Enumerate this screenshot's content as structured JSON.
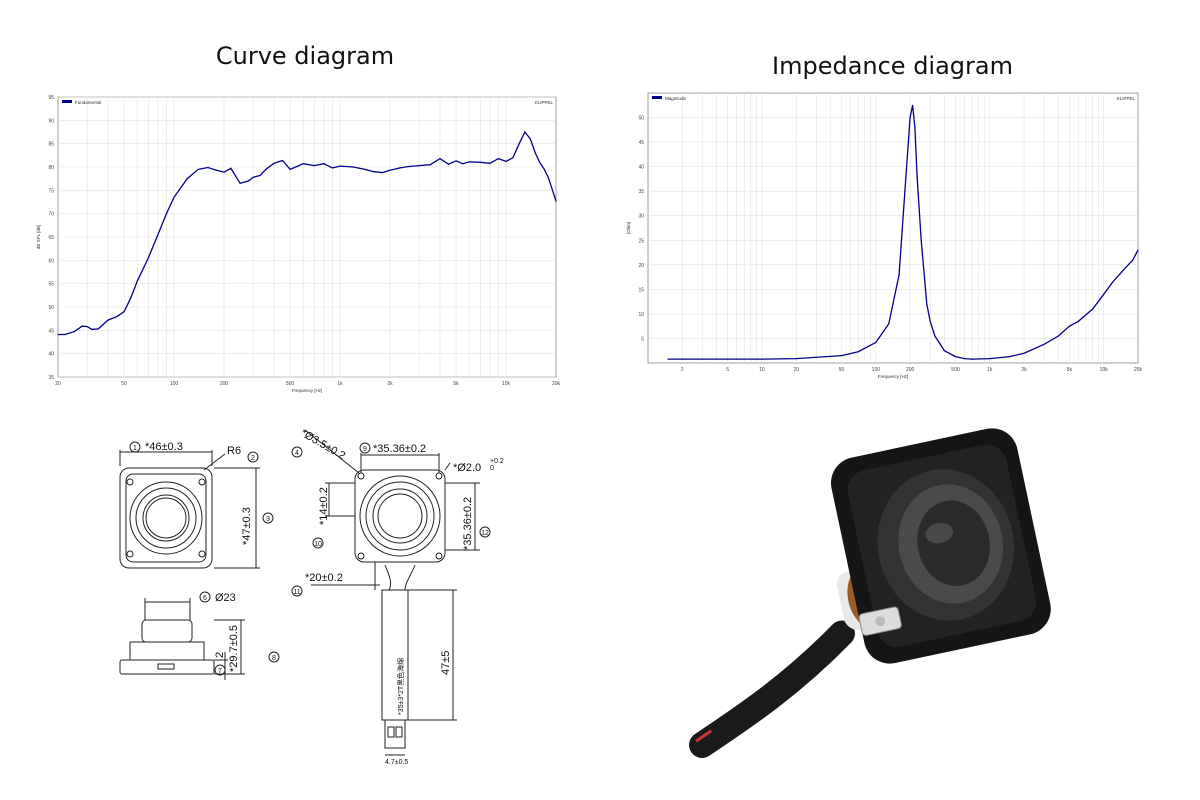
{
  "titles": {
    "curve": "Curve diagram",
    "impedance": "Impedance diagram"
  },
  "chart_data": [
    {
      "type": "line",
      "title": "",
      "legend": "Fundamental",
      "corner_label": "KLIPPEL",
      "xlabel": "Frequency [Hz]",
      "ylabel": "dB SPL [dB]",
      "xscale": "log",
      "xlim": [
        20,
        20000
      ],
      "ylim": [
        35,
        95
      ],
      "x_ticks": [
        "20",
        "50",
        "100",
        "200",
        "500",
        "1k",
        "2k",
        "5k",
        "10k",
        "20k"
      ],
      "y_ticks": [
        "35",
        "40",
        "45",
        "50",
        "55",
        "60",
        "65",
        "70",
        "75",
        "80",
        "85",
        "90",
        "95"
      ],
      "grid": true,
      "legend_position": "top-left",
      "color": "#00008b",
      "series": [
        {
          "name": "Fundamental",
          "x": [
            20,
            22,
            25,
            28,
            30,
            32,
            35,
            40,
            45,
            50,
            55,
            60,
            70,
            80,
            90,
            100,
            120,
            140,
            160,
            180,
            200,
            220,
            250,
            280,
            300,
            330,
            360,
            400,
            450,
            500,
            550,
            600,
            700,
            800,
            900,
            1000,
            1200,
            1400,
            1600,
            1800,
            2000,
            2300,
            2600,
            3000,
            3500,
            4000,
            4500,
            5000,
            5500,
            6000,
            7000,
            8000,
            9000,
            10000,
            11000,
            12000,
            13000,
            14000,
            15000,
            16000,
            17000,
            18000,
            20000
          ],
          "y": [
            44.1,
            44.1,
            44.7,
            45.9,
            45.8,
            45.2,
            45.3,
            47.2,
            47.9,
            49.0,
            52.0,
            55.5,
            60.5,
            65.5,
            70.0,
            73.5,
            77.5,
            79.5,
            79.9,
            79.3,
            78.9,
            79.7,
            76.5,
            77.0,
            77.8,
            78.2,
            79.6,
            80.8,
            81.4,
            79.5,
            80.1,
            80.7,
            80.3,
            80.7,
            79.8,
            80.2,
            80.0,
            79.5,
            79.0,
            78.8,
            79.3,
            79.8,
            80.1,
            80.3,
            80.5,
            81.8,
            80.6,
            81.3,
            80.7,
            81.1,
            81.0,
            80.8,
            81.8,
            81.2,
            82.0,
            85.0,
            87.5,
            86.0,
            83.0,
            80.9,
            79.5,
            77.7,
            72.7
          ]
        }
      ]
    },
    {
      "type": "line",
      "title": "",
      "legend": "Magnitude",
      "corner_label": "KLIPPEL",
      "xlabel": "Frequency [Hz]",
      "ylabel": "[Ohm]",
      "xscale": "log",
      "xlim": [
        1,
        20000
      ],
      "ylim": [
        0,
        55
      ],
      "x_ticks": [
        "2",
        "5",
        "10",
        "20",
        "50",
        "100",
        "200",
        "500",
        "1k",
        "2k",
        "5k",
        "10k",
        "20k"
      ],
      "y_ticks": [
        "5",
        "10",
        "15",
        "20",
        "25",
        "30",
        "35",
        "40",
        "45",
        "50"
      ],
      "grid": true,
      "legend_position": "top-left",
      "color": "#00008b",
      "series": [
        {
          "name": "Magnitude",
          "x": [
            1.5,
            2,
            5,
            10,
            20,
            50,
            70,
            100,
            130,
            160,
            180,
            200,
            210,
            220,
            230,
            250,
            280,
            300,
            330,
            400,
            500,
            600,
            700,
            1000,
            1500,
            2000,
            3000,
            4000,
            5000,
            6000,
            8000,
            10000,
            12000,
            15000,
            18000,
            20000
          ],
          "y": [
            0.8,
            0.8,
            0.8,
            0.8,
            0.9,
            1.5,
            2.3,
            4.2,
            8.0,
            18.0,
            35.0,
            50.0,
            52.5,
            48.0,
            38.0,
            25.0,
            12.0,
            8.5,
            5.5,
            2.5,
            1.3,
            0.9,
            0.8,
            0.9,
            1.3,
            2.0,
            3.8,
            5.5,
            7.5,
            8.5,
            11.0,
            14.0,
            16.5,
            19.0,
            21.0,
            23.0
          ]
        }
      ]
    }
  ],
  "drawing": {
    "dims": {
      "d1": "*46±0.3",
      "d2": "R6",
      "d3": "*47±0.3",
      "d4": "*Ø3.5±0.2",
      "d5": "*35.36±0.2",
      "d6": "Ø23",
      "d7": "2",
      "d8": "*29.7±0.5",
      "d9": "*Ø2.0",
      "d9_tol_upper": "+0.2",
      "d9_tol_lower": "0",
      "d10": "*14±0.2",
      "d11": "*20±0.2",
      "d12": "*35.36±0.2",
      "cable": "*35±3*2T黑色海绵",
      "cable_len": "47±5",
      "connector": "4.7±0.5"
    },
    "callouts": [
      "1",
      "2",
      "3",
      "4",
      "5",
      "6",
      "7",
      "8",
      "9",
      "10",
      "11",
      "12"
    ]
  }
}
